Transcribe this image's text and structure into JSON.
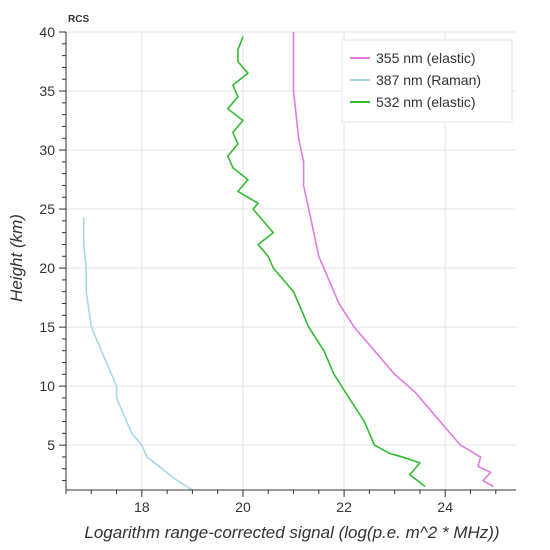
{
  "chart_data": {
    "type": "line",
    "title": "RCS",
    "xlabel": "Logarithm range-corrected signal (log(p.e. m^2 * MHz))",
    "ylabel": "Height (km)",
    "xlim": [
      16.5,
      25.4
    ],
    "ylim": [
      1.2,
      40
    ],
    "xticks": [
      18,
      20,
      22,
      24
    ],
    "yticks": [
      5,
      10,
      15,
      20,
      25,
      30,
      35,
      40
    ],
    "grid": true,
    "legend_position": "top-right",
    "series": [
      {
        "name": "355 nm (elastic)",
        "color": "#e07ce0",
        "x": [
          24.95,
          24.75,
          24.9,
          24.65,
          24.7,
          24.3,
          24.0,
          23.7,
          23.4,
          23.0,
          22.6,
          22.2,
          21.9,
          21.7,
          21.5,
          21.4,
          21.3,
          21.2,
          21.2,
          21.1,
          21.05,
          21.0,
          21.0,
          21.0
        ],
        "y": [
          1.5,
          2.0,
          2.7,
          3.2,
          4.0,
          5.0,
          6.5,
          8.0,
          9.5,
          11.0,
          13.0,
          15.0,
          17.0,
          19.0,
          21.0,
          23.0,
          25.0,
          27.0,
          29.0,
          31.0,
          33.0,
          35.0,
          37.5,
          40.0
        ]
      },
      {
        "name": "387 nm (Raman)",
        "color": "#a6d8e8",
        "x": [
          19.0,
          18.7,
          18.4,
          18.1,
          18.0,
          17.8,
          17.7,
          17.6,
          17.5,
          17.5,
          17.4,
          17.3,
          17.2,
          17.1,
          17.0,
          16.95,
          16.9,
          16.9,
          16.85,
          16.85
        ],
        "y": [
          1.2,
          2.0,
          3.0,
          4.0,
          5.0,
          6.0,
          7.0,
          8.0,
          9.0,
          10.0,
          11.0,
          12.0,
          13.0,
          14.0,
          15.0,
          16.5,
          18.0,
          20.0,
          22.0,
          24.3
        ]
      },
      {
        "name": "532 nm (elastic)",
        "color": "#33bb33",
        "x": [
          23.6,
          23.3,
          23.5,
          23.0,
          23.3,
          22.9,
          22.6,
          22.4,
          22.1,
          21.8,
          21.6,
          21.3,
          21.1,
          21.0,
          20.8,
          20.6,
          20.5,
          20.3,
          20.6,
          20.4,
          20.2,
          20.3,
          19.9,
          20.1,
          19.8,
          19.7,
          19.9,
          19.8,
          20.0,
          19.7,
          19.9,
          19.8,
          20.1,
          19.9,
          19.9,
          20.0
        ],
        "y": [
          1.5,
          2.5,
          3.5,
          4.2,
          3.8,
          4.3,
          5.0,
          7.0,
          9.0,
          11.0,
          13.0,
          15.0,
          17.0,
          18.0,
          19.0,
          20.0,
          21.0,
          22.0,
          23.0,
          24.0,
          25.0,
          25.5,
          26.5,
          27.5,
          28.5,
          29.5,
          30.5,
          31.5,
          32.5,
          33.5,
          34.5,
          35.5,
          36.5,
          37.5,
          38.5,
          39.6
        ]
      }
    ]
  }
}
